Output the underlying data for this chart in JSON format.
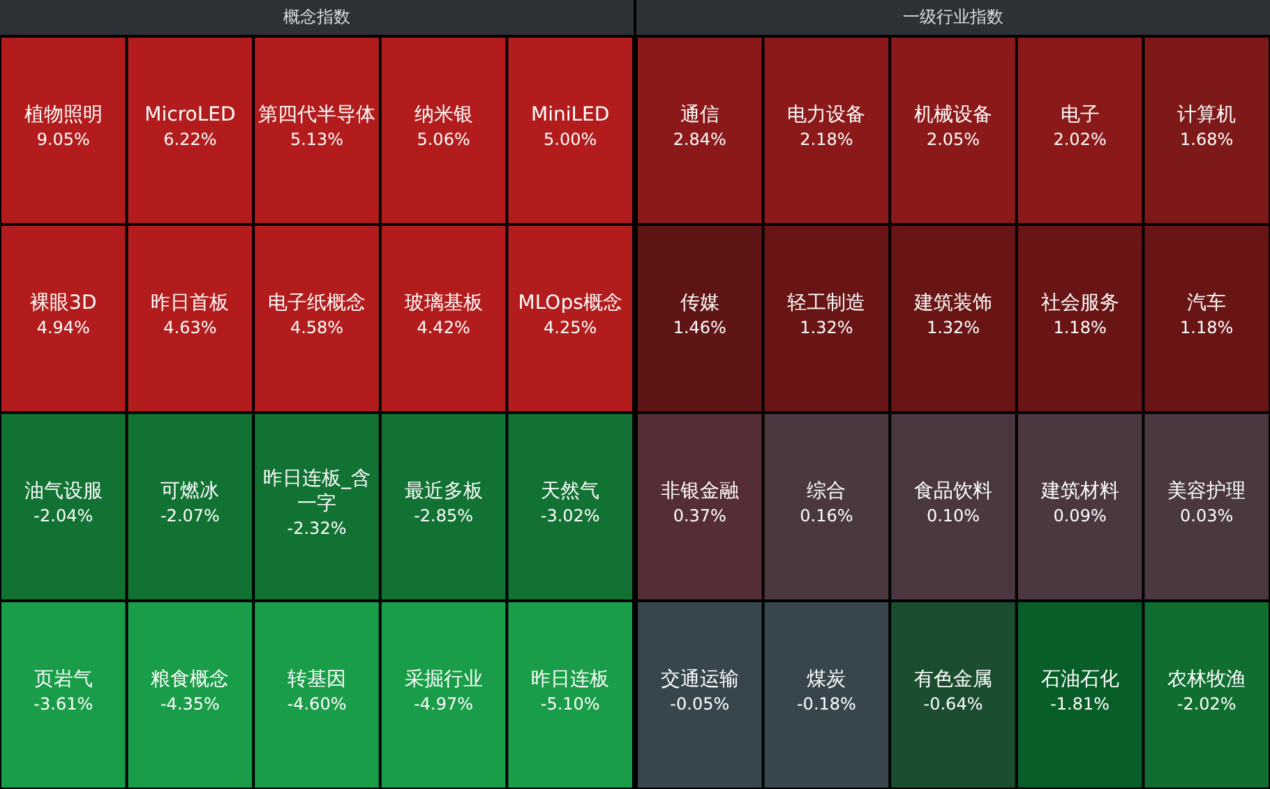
{
  "chart_data": [
    {
      "type": "other",
      "title": "概念指数",
      "categories": [
        "植物照明",
        "MicroLED",
        "第四代半导体",
        "纳米银",
        "MiniLED",
        "裸眼3D",
        "昨日首板",
        "电子纸概念",
        "玻璃基板",
        "MLOps概念",
        "油气设服",
        "可燃冰",
        "昨日连板_含一字",
        "最近多板",
        "天然气",
        "页岩气",
        "粮食概念",
        "转基因",
        "采掘行业",
        "昨日连板"
      ],
      "values": [
        9.05,
        6.22,
        5.13,
        5.06,
        5.0,
        4.94,
        4.63,
        4.58,
        4.42,
        4.25,
        -2.04,
        -2.07,
        -2.32,
        -2.85,
        -3.02,
        -3.61,
        -4.35,
        -4.6,
        -4.97,
        -5.1
      ],
      "value_labels": [
        "9.05%",
        "6.22%",
        "5.13%",
        "5.06%",
        "5.00%",
        "4.94%",
        "4.63%",
        "4.58%",
        "4.42%",
        "4.25%",
        "-2.04%",
        "-2.07%",
        "-2.32%",
        "-2.85%",
        "-3.02%",
        "-3.61%",
        "-4.35%",
        "-4.60%",
        "-4.97%",
        "-5.10%"
      ],
      "colors": [
        "#b31c1c",
        "#b31c1c",
        "#b31c1c",
        "#b31c1c",
        "#b31c1c",
        "#b31c1c",
        "#b31c1c",
        "#b31c1c",
        "#b31c1c",
        "#b31c1c",
        "#117233",
        "#117233",
        "#117233",
        "#117233",
        "#117233",
        "#1a9d48",
        "#1a9d48",
        "#1a9d48",
        "#1a9d48",
        "#1a9d48"
      ]
    },
    {
      "type": "other",
      "title": "一级行业指数",
      "categories": [
        "通信",
        "电力设备",
        "机械设备",
        "电子",
        "计算机",
        "传媒",
        "轻工制造",
        "建筑装饰",
        "社会服务",
        "汽车",
        "非银金融",
        "综合",
        "食品饮料",
        "建筑材料",
        "美容护理",
        "交通运输",
        "煤炭",
        "有色金属",
        "石油石化",
        "农林牧渔"
      ],
      "values": [
        2.84,
        2.18,
        2.05,
        2.02,
        1.68,
        1.46,
        1.32,
        1.32,
        1.18,
        1.18,
        0.37,
        0.16,
        0.1,
        0.09,
        0.03,
        -0.05,
        -0.18,
        -0.64,
        -1.81,
        -2.02
      ],
      "value_labels": [
        "2.84%",
        "2.18%",
        "2.05%",
        "2.02%",
        "1.68%",
        "1.46%",
        "1.32%",
        "1.32%",
        "1.18%",
        "1.18%",
        "0.37%",
        "0.16%",
        "0.10%",
        "0.09%",
        "0.03%",
        "-0.05%",
        "-0.18%",
        "-0.64%",
        "-1.81%",
        "-2.02%"
      ],
      "colors": [
        "#8b1919",
        "#8b1919",
        "#8b1919",
        "#8b1919",
        "#7e1919",
        "#5f1515",
        "#6a1515",
        "#6a1515",
        "#6a1515",
        "#6a1515",
        "#552d34",
        "#4a3740",
        "#4a3740",
        "#4a3740",
        "#4a3740",
        "#37464d",
        "#37464d",
        "#1b4d2f",
        "#075e28",
        "#0f6e30"
      ]
    }
  ]
}
